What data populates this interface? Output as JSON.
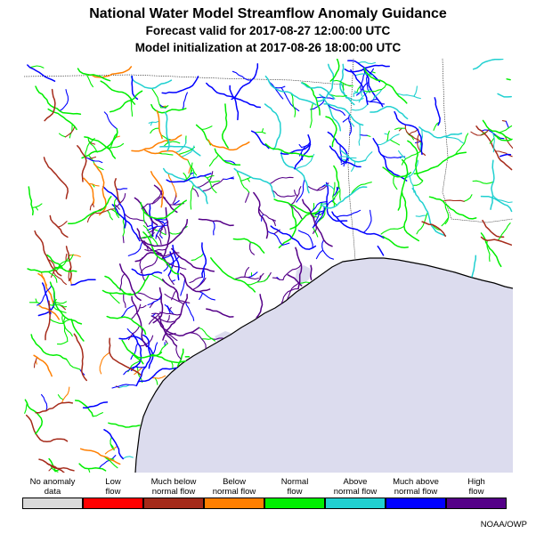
{
  "header": {
    "title": "National Water Model Streamflow Anomaly Guidance",
    "forecast_line": "Forecast valid for 2017-08-27 12:00:00 UTC",
    "init_line": "Model initialization at 2017-08-26 18:00:00 UTC"
  },
  "map": {
    "land_color": "#ffffff",
    "water_color": "#dcdcee",
    "boundary_color": "#000000"
  },
  "legend": {
    "items": [
      {
        "label": "No anomaly\ndata",
        "color": "#d9d9d9"
      },
      {
        "label": "Low\nflow",
        "color": "#ff0000"
      },
      {
        "label": "Much below\nnormal flow",
        "color": "#a52a1a"
      },
      {
        "label": "Below\nnormal flow",
        "color": "#ff7f00"
      },
      {
        "label": "Normal\nflow",
        "color": "#00ee00"
      },
      {
        "label": "Above\nnormal flow",
        "color": "#20d0d0"
      },
      {
        "label": "Much above\nnormal flow",
        "color": "#0000ff"
      },
      {
        "label": "High\nflow",
        "color": "#550088"
      }
    ]
  },
  "credit": "NOAA/OWP"
}
